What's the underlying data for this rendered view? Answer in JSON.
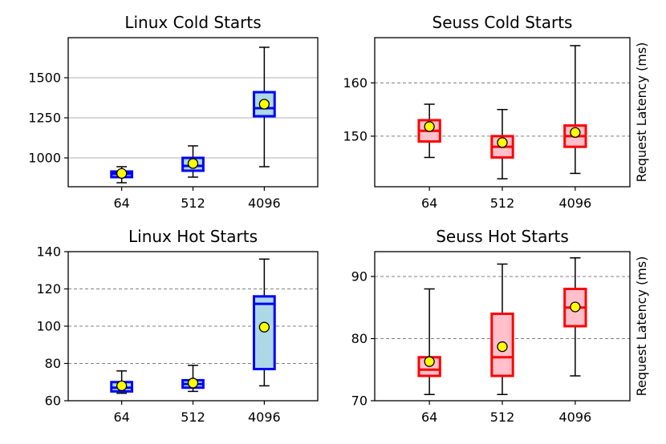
{
  "colors": {
    "linux_face": "#add8e6",
    "linux_edge": "#0000ff",
    "seuss_face": "#ffc0cb",
    "seuss_edge": "#ff0000",
    "mean_marker": "#ffff00",
    "whisker": "#000000"
  },
  "chart_data": [
    {
      "type": "box",
      "title": "Linux Cold Starts",
      "categories": [
        "64",
        "512",
        "4096"
      ],
      "ylabel": "",
      "ylim": [
        820,
        1750
      ],
      "yticks": [
        1000,
        1250,
        1500
      ],
      "grid": "solid",
      "boxes": [
        {
          "whislo": 845,
          "q1": 880,
          "med": 900,
          "q3": 915,
          "whishi": 945,
          "mean": 903
        },
        {
          "whislo": 880,
          "q1": 920,
          "med": 950,
          "q3": 1000,
          "whishi": 1075,
          "mean": 965
        },
        {
          "whislo": 945,
          "q1": 1260,
          "med": 1310,
          "q3": 1410,
          "whishi": 1690,
          "mean": 1335
        }
      ]
    },
    {
      "type": "box",
      "title": "Seuss Cold Starts",
      "categories": [
        "64",
        "512",
        "4096"
      ],
      "ylabel": "Request Latency (ms)",
      "ylim": [
        140.5,
        168.5
      ],
      "yticks": [
        150,
        160
      ],
      "grid": "dashed",
      "boxes": [
        {
          "whislo": 146,
          "q1": 149,
          "med": 151,
          "q3": 153,
          "whishi": 156,
          "mean": 151.8
        },
        {
          "whislo": 142,
          "q1": 146,
          "med": 148,
          "q3": 150,
          "whishi": 155,
          "mean": 148.8
        },
        {
          "whislo": 143,
          "q1": 148,
          "med": 150,
          "q3": 152,
          "whishi": 167,
          "mean": 150.7
        }
      ]
    },
    {
      "type": "box",
      "title": "Linux Hot Starts",
      "categories": [
        "64",
        "512",
        "4096"
      ],
      "ylabel": "",
      "ylim": [
        60,
        140
      ],
      "yticks": [
        60,
        80,
        100,
        120,
        140
      ],
      "grid": "dashed",
      "boxes": [
        {
          "whislo": 64,
          "q1": 65,
          "med": 67,
          "q3": 70,
          "whishi": 76,
          "mean": 68
        },
        {
          "whislo": 65,
          "q1": 67,
          "med": 69,
          "q3": 71,
          "whishi": 79,
          "mean": 69.5
        },
        {
          "whislo": 68,
          "q1": 77,
          "med": 112,
          "q3": 116,
          "whishi": 136,
          "mean": 99.5
        }
      ]
    },
    {
      "type": "box",
      "title": "Seuss Hot Starts",
      "categories": [
        "64",
        "512",
        "4096"
      ],
      "ylabel": "Request Latency (ms)",
      "ylim": [
        70,
        94
      ],
      "yticks": [
        70,
        80,
        90
      ],
      "grid": "dashed",
      "boxes": [
        {
          "whislo": 71,
          "q1": 74,
          "med": 75,
          "q3": 77,
          "whishi": 88,
          "mean": 76.3
        },
        {
          "whislo": 71,
          "q1": 74,
          "med": 77,
          "q3": 84,
          "whishi": 92,
          "mean": 78.7
        },
        {
          "whislo": 74,
          "q1": 82,
          "med": 85,
          "q3": 88,
          "whishi": 93,
          "mean": 85.1
        }
      ]
    }
  ]
}
